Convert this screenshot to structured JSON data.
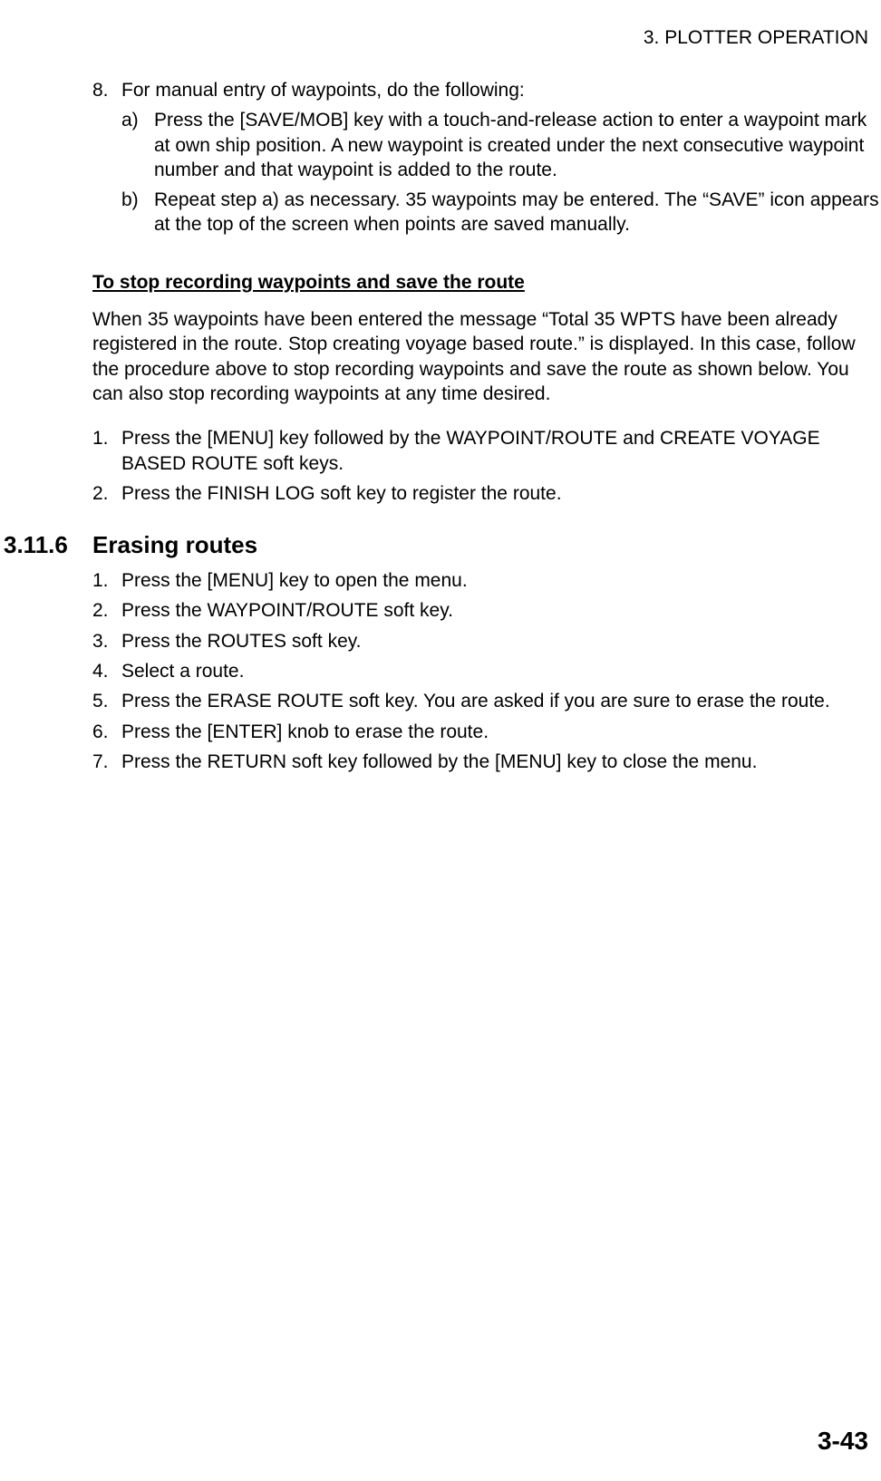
{
  "header": "3. PLOTTER OPERATION",
  "step8": {
    "num": "8.",
    "lead": "For manual entry of waypoints, do the following:",
    "a": {
      "num": "a)",
      "text": "Press the [SAVE/MOB] key with a touch-and-release action to enter a waypoint mark at own ship position. A new waypoint is created under the next consecutive waypoint number and that waypoint is added to the route."
    },
    "b": {
      "num": "b)",
      "text": "Repeat step a) as necessary. 35 waypoints may be entered. The “SAVE” icon appears at the top of the screen when points are saved manually."
    }
  },
  "stopRec": {
    "heading": "To stop recording waypoints and save the route",
    "para": "When 35 waypoints have been entered the message “Total 35 WPTS have been already registered in the route. Stop creating voyage based route.” is displayed. In this case, follow the procedure above to stop recording waypoints and save the route as shown below. You can also stop recording waypoints at any time desired.",
    "s1": {
      "num": "1.",
      "text": "Press the [MENU] key followed by the WAYPOINT/ROUTE and CREATE VOYAGE BASED ROUTE soft keys."
    },
    "s2": {
      "num": "2.",
      "text": "Press the FINISH LOG soft key to register the route."
    }
  },
  "section": {
    "num": "3.11.6",
    "title": "Erasing routes",
    "s1": {
      "num": "1.",
      "text": "Press the [MENU] key to open the menu."
    },
    "s2": {
      "num": "2.",
      "text": "Press the WAYPOINT/ROUTE soft key."
    },
    "s3": {
      "num": "3.",
      "text": "Press the ROUTES soft key."
    },
    "s4": {
      "num": "4.",
      "text": "Select a route."
    },
    "s5": {
      "num": "5.",
      "text": "Press the ERASE ROUTE soft key. You are asked if you are sure to erase the route."
    },
    "s6": {
      "num": "6.",
      "text": "Press the [ENTER] knob to erase the route."
    },
    "s7": {
      "num": "7.",
      "text": "Press the RETURN soft key followed by the [MENU] key to close the menu."
    }
  },
  "pageNumber": "3-43"
}
